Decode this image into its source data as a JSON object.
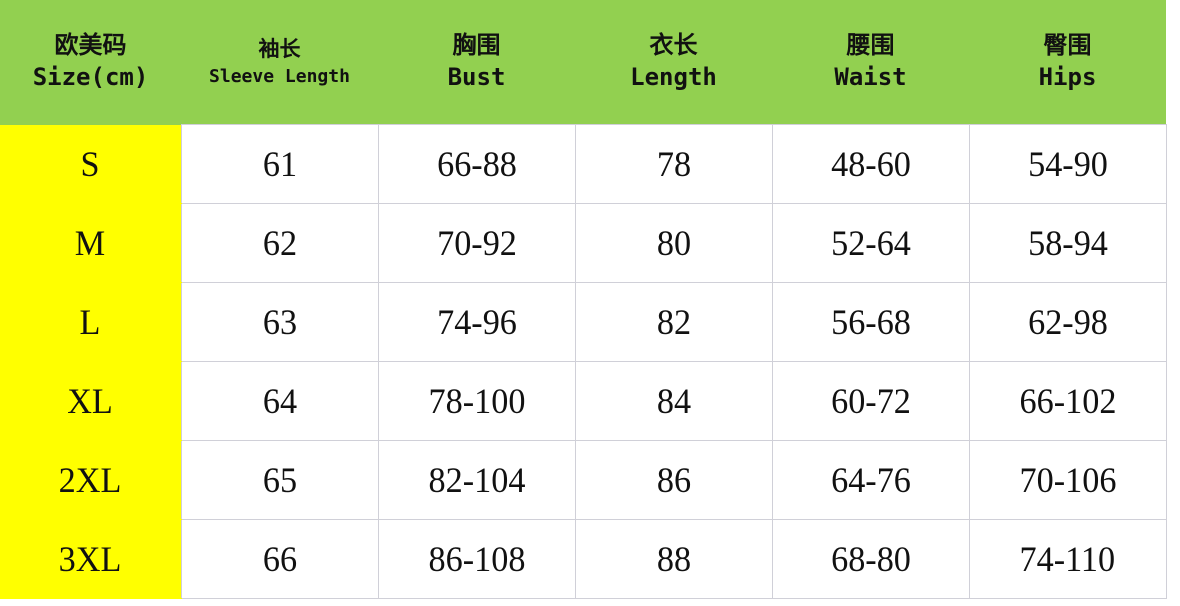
{
  "colors": {
    "header_bg": "#92d050",
    "size_col_bg": "#ffff00",
    "grid": "#d0d0d8"
  },
  "headers": [
    {
      "zh": "欧美码",
      "en": "Size(cm)"
    },
    {
      "zh": "袖长",
      "en": "Sleeve Length"
    },
    {
      "zh": "胸围",
      "en": "Bust"
    },
    {
      "zh": "衣长",
      "en": "Length"
    },
    {
      "zh": "腰围",
      "en": "Waist"
    },
    {
      "zh": "臀围",
      "en": "Hips"
    }
  ],
  "rows": [
    [
      "S",
      "61",
      "66-88",
      "78",
      "48-60",
      "54-90"
    ],
    [
      "M",
      "62",
      "70-92",
      "80",
      "52-64",
      "58-94"
    ],
    [
      "L",
      "63",
      "74-96",
      "82",
      "56-68",
      "62-98"
    ],
    [
      "XL",
      "64",
      "78-100",
      "84",
      "60-72",
      "66-102"
    ],
    [
      "2XL",
      "65",
      "82-104",
      "86",
      "64-76",
      "70-106"
    ],
    [
      "3XL",
      "66",
      "86-108",
      "88",
      "68-80",
      "74-110"
    ]
  ]
}
